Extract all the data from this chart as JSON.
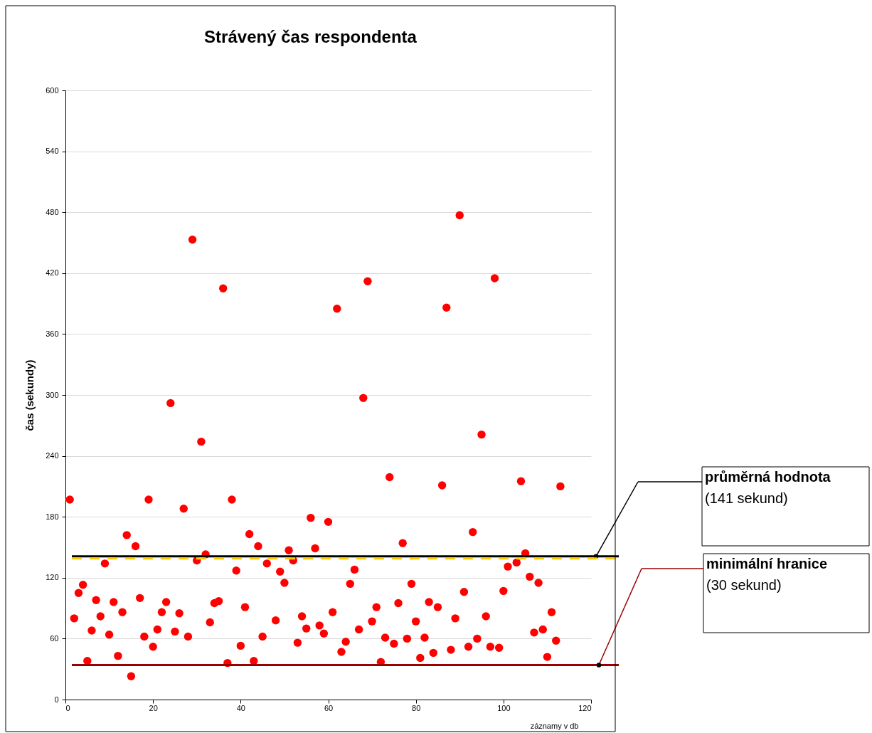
{
  "chart_data": {
    "type": "scatter",
    "title": "Strávený čas respondenta",
    "xlabel": "záznamy v db",
    "ylabel": "čas (sekundy)",
    "x": [
      1,
      2,
      3,
      4,
      5,
      6,
      7,
      8,
      9,
      10,
      11,
      12,
      13,
      14,
      15,
      16,
      17,
      18,
      19,
      20,
      21,
      22,
      23,
      24,
      25,
      26,
      27,
      28,
      29,
      30,
      31,
      32,
      33,
      34,
      35,
      36,
      37,
      38,
      39,
      40,
      41,
      42,
      43,
      44,
      45,
      46,
      48,
      49,
      50,
      51,
      52,
      53,
      54,
      55,
      56,
      57,
      58,
      59,
      60,
      61,
      62,
      63,
      64,
      65,
      66,
      67,
      68,
      69,
      70,
      71,
      72,
      73,
      74,
      75,
      76,
      77,
      78,
      79,
      80,
      81,
      82,
      83,
      84,
      85,
      86,
      87,
      88,
      89,
      90,
      91,
      92,
      93,
      94,
      95,
      96,
      97,
      98,
      99,
      100,
      101,
      103,
      104,
      105,
      106,
      107,
      108,
      109,
      110,
      111,
      112,
      113
    ],
    "series": [
      {
        "color": "#ff0000",
        "values": [
          197,
          80,
          105,
          113,
          38,
          68,
          98,
          82,
          134,
          64,
          96,
          43,
          86,
          162,
          23,
          151,
          100,
          62,
          197,
          52,
          69,
          86,
          96,
          292,
          67,
          85,
          188,
          62,
          453,
          137,
          254,
          143,
          76,
          95,
          97,
          405,
          36,
          197,
          127,
          53,
          91,
          163,
          38,
          151,
          62,
          134,
          78,
          126,
          115,
          147,
          137,
          56,
          82,
          70,
          179,
          149,
          73,
          65,
          175,
          86,
          385,
          47,
          57,
          114,
          128,
          69,
          297,
          412,
          77,
          91,
          37,
          61,
          219,
          55,
          95,
          154,
          60,
          114,
          77,
          41,
          61,
          96,
          46,
          91,
          211,
          386,
          49,
          80,
          477,
          106,
          52,
          165,
          60,
          261,
          82,
          52,
          415,
          51,
          107,
          131,
          135,
          215,
          144,
          121,
          66,
          115,
          69,
          42,
          86,
          58,
          210
        ]
      }
    ],
    "marker": "circle",
    "xlim": [
      0,
      120
    ],
    "ylim": [
      0,
      600
    ],
    "xticks": [
      0,
      20,
      40,
      60,
      80,
      100,
      120
    ],
    "yticks": [
      0,
      60,
      120,
      180,
      240,
      300,
      360,
      420,
      480,
      540,
      600
    ],
    "grid": "y",
    "legend": "right",
    "ref_lines": [
      {
        "axis": "y",
        "value": 141,
        "label": "průměrná hodnota\n(141 sekund)",
        "color": "#000000",
        "line_style": "solid"
      },
      {
        "axis": "y",
        "value": 139,
        "color": "#ffcc00",
        "line_style": "dashed"
      },
      {
        "axis": "y",
        "value": 34,
        "label": "minimální hranice\n(30 sekund)",
        "color": "#990000",
        "line_style": "solid"
      }
    ]
  }
}
